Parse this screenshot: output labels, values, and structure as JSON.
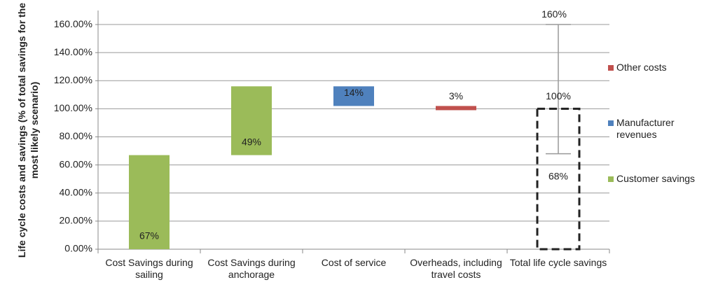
{
  "chart_data": {
    "type": "waterfall",
    "y_label": "Life cycle costs and savings (% of total savings for the most likely scenario)",
    "categories": [
      "Cost Savings during sailing",
      "Cost Savings during anchorage",
      "Cost of service",
      "Overheads, including travel costs",
      "Total life cycle savings"
    ],
    "measure": [
      "increase",
      "increase",
      "decrease",
      "decrease",
      "total"
    ],
    "series": [
      {
        "name": "Other costs",
        "color": "#c0504d",
        "values": [
          null,
          null,
          null,
          3,
          null
        ],
        "value_labels": [
          null,
          null,
          null,
          "3%",
          null
        ]
      },
      {
        "name": "Manufacturer revenues",
        "color": "#4f81bd",
        "values": [
          null,
          null,
          14,
          null,
          null
        ],
        "value_labels": [
          null,
          null,
          "14%",
          null,
          null
        ]
      },
      {
        "name": "Customer savings",
        "color": "#9bbb59",
        "values": [
          67,
          49,
          null,
          null,
          null
        ],
        "value_labels": [
          "67%",
          "49%",
          null,
          null,
          null
        ]
      }
    ],
    "total": {
      "value": 100,
      "label": "100%",
      "error_low": 68,
      "error_low_label": "68%",
      "error_high": 160,
      "error_high_label": "160%"
    },
    "ylim": [
      0,
      170
    ],
    "yticks": [
      {
        "value": 0,
        "label": "0.00%"
      },
      {
        "value": 20,
        "label": "20.00%"
      },
      {
        "value": 40,
        "label": "40.00%"
      },
      {
        "value": 60,
        "label": "60.00%"
      },
      {
        "value": 80,
        "label": "80.00%"
      },
      {
        "value": 100,
        "label": "100.00%"
      },
      {
        "value": 120,
        "label": "120.00%"
      },
      {
        "value": 140,
        "label": "140.00%"
      },
      {
        "value": 160,
        "label": "160.00%"
      }
    ],
    "grid": true,
    "legend": "right"
  }
}
